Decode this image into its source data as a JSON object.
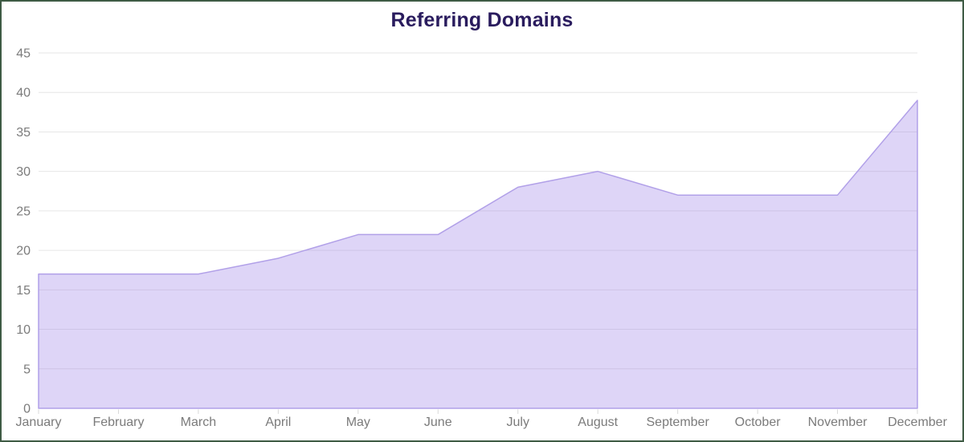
{
  "title": "Referring Domains",
  "chart_data": {
    "type": "area",
    "title": "Referring Domains",
    "x": [
      "January",
      "February",
      "March",
      "April",
      "May",
      "June",
      "July",
      "August",
      "September",
      "October",
      "November",
      "December"
    ],
    "series": [
      {
        "name": "Referring Domains",
        "values": [
          17,
          17,
          17,
          19,
          22,
          22,
          28,
          30,
          27,
          27,
          27,
          39
        ]
      }
    ],
    "xlabel": "",
    "ylabel": "",
    "ylim": [
      0,
      45
    ],
    "ytick_step": 5,
    "grid": "horizontal",
    "legend": "none"
  },
  "colors": {
    "title": "#2a1c5e",
    "area_fill": "rgba(161,135,232,0.35)",
    "area_stroke": "#b1a0e8",
    "grid_line": "#e6e6e6",
    "axis_tick": "#d9d9d9",
    "tick_label": "#7b7b7b",
    "frame_border": "#3e5b44",
    "background": "#ffffff"
  }
}
